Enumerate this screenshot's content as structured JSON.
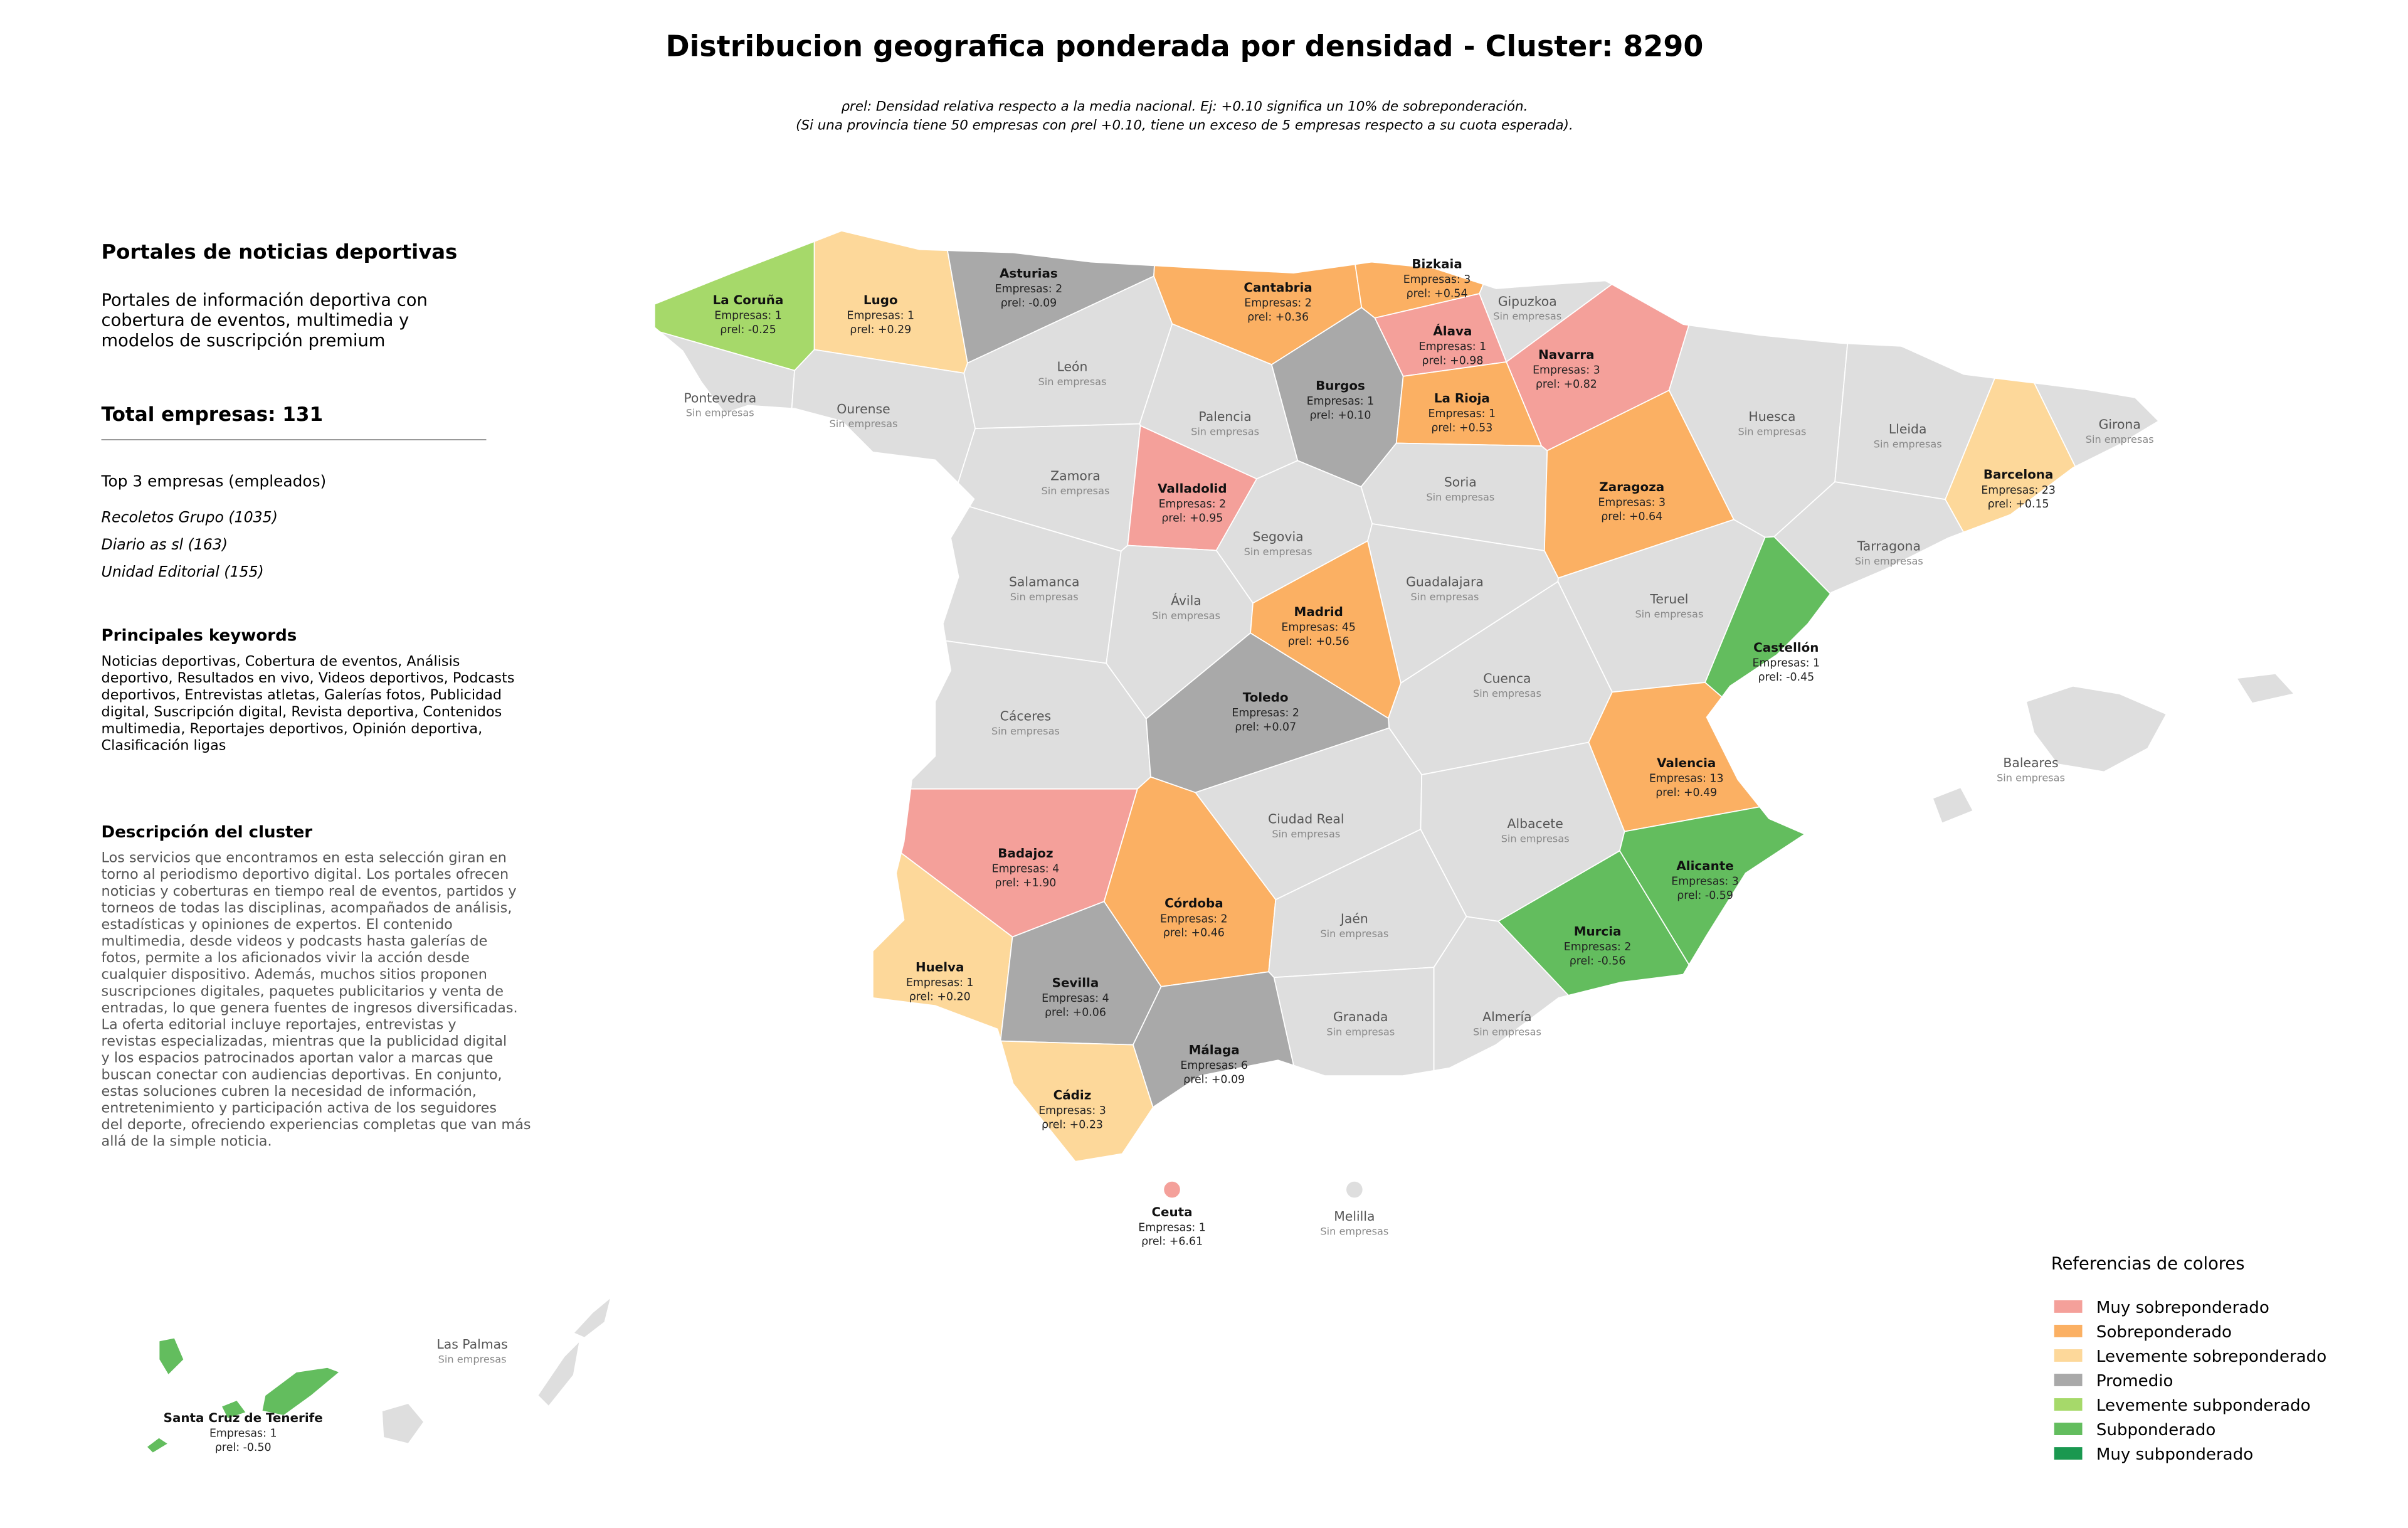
{
  "title": "Distribucion geografica ponderada por densidad - Cluster: 8290",
  "subtitle": [
    "ρrel: Densidad relativa respecto a la media nacional. Ej: +0.10 significa un 10% de sobreponderación.",
    "(Si una provincia tiene 50 empresas con ρrel +0.10, tiene un exceso de 5 empresas respecto a su cuota esperada)."
  ],
  "sidebar": {
    "heading": "Portales de noticias deportivas",
    "description": [
      "Portales de información deportiva con",
      "cobertura de eventos, multimedia y",
      "modelos de suscripción premium"
    ],
    "total": "Total empresas: 131",
    "top_heading": "Top 3 empresas (empleados)",
    "top": [
      "Recoletos Grupo (1035)",
      "Diario as sl (163)",
      "Unidad Editorial (155)"
    ],
    "keywords_heading": "Principales keywords",
    "keywords": [
      "Noticias deportivas, Cobertura de eventos, Análisis",
      "deportivo, Resultados en vivo, Videos deportivos, Podcasts",
      "deportivos, Entrevistas atletas, Galerías fotos, Publicidad",
      "digital, Suscripción digital, Revista deportiva, Contenidos",
      "multimedia, Reportajes deportivos, Opinión deportiva,",
      "Clasificación ligas"
    ],
    "cluster_heading": "Descripción del cluster",
    "cluster_description": [
      "Los servicios que encontramos en esta selección giran en",
      "torno al periodismo deportivo digital. Los portales ofrecen",
      "noticias y coberturas en tiempo real de eventos, partidos y",
      "torneos de todas las disciplinas, acompañados de análisis,",
      "estadísticas y opiniones de expertos. El contenido",
      "multimedia, desde videos y podcasts hasta galerías de",
      "fotos, permite a los aficionados vivir la acción desde",
      "cualquier dispositivo. Además, muchos sitios proponen",
      "suscripciones digitales, paquetes publicitarios y venta de",
      "entradas, lo que genera fuentes de ingresos diversificadas.",
      "La oferta editorial incluye reportajes, entrevistas y",
      "revistas especializadas, mientras que la publicidad digital",
      "y los espacios patrocinados aportan valor a marcas que",
      "buscan conectar con audiencias deportivas. En conjunto,",
      "estas soluciones cubren la necesidad de información,",
      "entretenimiento y participación activa de los seguidores",
      "del deporte, ofreciendo experiencias completas que van más",
      "allá de la simple noticia."
    ]
  },
  "provinces": [
    {
      "name": "La Coruña",
      "color": "#a6d96a",
      "count": "Empresas: 1",
      "rho": "ρrel: -0.25"
    },
    {
      "name": "Lugo",
      "color": "#fdd89a",
      "count": "Empresas: 1",
      "rho": "ρrel: +0.29"
    },
    {
      "name": "Asturias",
      "color": "#a9a9a9",
      "count": "Empresas: 2",
      "rho": "ρrel: -0.09"
    },
    {
      "name": "Cantabria",
      "color": "#fbb063",
      "count": "Empresas: 2",
      "rho": "ρrel: +0.36"
    },
    {
      "name": "Bizkaia",
      "color": "#fbb063",
      "count": "Empresas: 3",
      "rho": "ρrel: +0.54"
    },
    {
      "name": "Gipuzkoa",
      "color": "#dedede",
      "status": "Sin empresas"
    },
    {
      "name": "Álava",
      "color": "#f4a09a",
      "count": "Empresas: 1",
      "rho": "ρrel: +0.98"
    },
    {
      "name": "Navarra",
      "color": "#f4a09a",
      "count": "Empresas: 3",
      "rho": "ρrel: +0.82"
    },
    {
      "name": "Pontevedra",
      "color": "#dedede",
      "status": "Sin empresas"
    },
    {
      "name": "Ourense",
      "color": "#dedede",
      "status": "Sin empresas"
    },
    {
      "name": "León",
      "color": "#dedede",
      "status": "Sin empresas"
    },
    {
      "name": "Palencia",
      "color": "#dedede",
      "status": "Sin empresas"
    },
    {
      "name": "Burgos",
      "color": "#a9a9a9",
      "count": "Empresas: 1",
      "rho": "ρrel: +0.10"
    },
    {
      "name": "La Rioja",
      "color": "#fbb063",
      "count": "Empresas: 1",
      "rho": "ρrel: +0.53"
    },
    {
      "name": "Huesca",
      "color": "#dedede",
      "status": "Sin empresas"
    },
    {
      "name": "Lleida",
      "color": "#dedede",
      "status": "Sin empresas"
    },
    {
      "name": "Girona",
      "color": "#dedede",
      "status": "Sin empresas"
    },
    {
      "name": "Barcelona",
      "color": "#fdd89a",
      "count": "Empresas: 23",
      "rho": "ρrel: +0.15"
    },
    {
      "name": "Zamora",
      "color": "#dedede",
      "status": "Sin empresas"
    },
    {
      "name": "Valladolid",
      "color": "#f4a09a",
      "count": "Empresas: 2",
      "rho": "ρrel: +0.95"
    },
    {
      "name": "Soria",
      "color": "#dedede",
      "status": "Sin empresas"
    },
    {
      "name": "Zaragoza",
      "color": "#fbb063",
      "count": "Empresas: 3",
      "rho": "ρrel: +0.64"
    },
    {
      "name": "Segovia",
      "color": "#dedede",
      "status": "Sin empresas"
    },
    {
      "name": "Tarragona",
      "color": "#dedede",
      "status": "Sin empresas"
    },
    {
      "name": "Salamanca",
      "color": "#dedede",
      "status": "Sin empresas"
    },
    {
      "name": "Ávila",
      "color": "#dedede",
      "status": "Sin empresas"
    },
    {
      "name": "Guadalajara",
      "color": "#dedede",
      "status": "Sin empresas"
    },
    {
      "name": "Teruel",
      "color": "#dedede",
      "status": "Sin empresas"
    },
    {
      "name": "Madrid",
      "color": "#fbb063",
      "count": "Empresas: 45",
      "rho": "ρrel: +0.56"
    },
    {
      "name": "Castellón",
      "color": "#63bd5e",
      "count": "Empresas: 1",
      "rho": "ρrel: -0.45"
    },
    {
      "name": "Cáceres",
      "color": "#dedede",
      "status": "Sin empresas"
    },
    {
      "name": "Toledo",
      "color": "#a9a9a9",
      "count": "Empresas: 2",
      "rho": "ρrel: +0.07"
    },
    {
      "name": "Cuenca",
      "color": "#dedede",
      "status": "Sin empresas"
    },
    {
      "name": "Valencia",
      "color": "#fbb063",
      "count": "Empresas: 13",
      "rho": "ρrel: +0.49"
    },
    {
      "name": "Ciudad Real",
      "color": "#dedede",
      "status": "Sin empresas"
    },
    {
      "name": "Albacete",
      "color": "#dedede",
      "status": "Sin empresas"
    },
    {
      "name": "Badajoz",
      "color": "#f4a09a",
      "count": "Empresas: 4",
      "rho": "ρrel: +1.90"
    },
    {
      "name": "Córdoba",
      "color": "#fbb063",
      "count": "Empresas: 2",
      "rho": "ρrel: +0.46"
    },
    {
      "name": "Jaén",
      "color": "#dedede",
      "status": "Sin empresas"
    },
    {
      "name": "Alicante",
      "color": "#63bd5e",
      "count": "Empresas: 3",
      "rho": "ρrel: -0.59"
    },
    {
      "name": "Murcia",
      "color": "#63bd5e",
      "count": "Empresas: 2",
      "rho": "ρrel: -0.56"
    },
    {
      "name": "Huelva",
      "color": "#fdd89a",
      "count": "Empresas: 1",
      "rho": "ρrel: +0.20"
    },
    {
      "name": "Sevilla",
      "color": "#a9a9a9",
      "count": "Empresas: 4",
      "rho": "ρrel: +0.06"
    },
    {
      "name": "Granada",
      "color": "#dedede",
      "status": "Sin empresas"
    },
    {
      "name": "Almería",
      "color": "#dedede",
      "status": "Sin empresas"
    },
    {
      "name": "Málaga",
      "color": "#a9a9a9",
      "count": "Empresas: 6",
      "rho": "ρrel: +0.09"
    },
    {
      "name": "Cádiz",
      "color": "#fdd89a",
      "count": "Empresas: 3",
      "rho": "ρrel: +0.23"
    },
    {
      "name": "Baleares",
      "color": "#dedede",
      "status": "Sin empresas"
    },
    {
      "name": "Ceuta",
      "color": "#f4a09a",
      "count": "Empresas: 1",
      "rho": "ρrel: +6.61"
    },
    {
      "name": "Melilla",
      "color": "#dedede",
      "status": "Sin empresas"
    },
    {
      "name": "Las Palmas",
      "color": "#dedede",
      "status": "Sin empresas"
    },
    {
      "name": "Santa Cruz de Tenerife",
      "color": "#63bd5e",
      "count": "Empresas: 1",
      "rho": "ρrel: -0.50"
    }
  ],
  "legend": {
    "title": "Referencias de colores",
    "items": [
      {
        "name": "Muy sobreponderado",
        "color": "#f4a09a"
      },
      {
        "name": "Sobreponderado",
        "color": "#fbb063"
      },
      {
        "name": "Levemente sobreponderado",
        "color": "#fdd89a"
      },
      {
        "name": "Promedio",
        "color": "#a9a9a9"
      },
      {
        "name": "Levemente subponderado",
        "color": "#a6d96a"
      },
      {
        "name": "Subponderado",
        "color": "#63bd5e"
      },
      {
        "name": "Muy subponderado",
        "color": "#1a9850"
      }
    ]
  }
}
